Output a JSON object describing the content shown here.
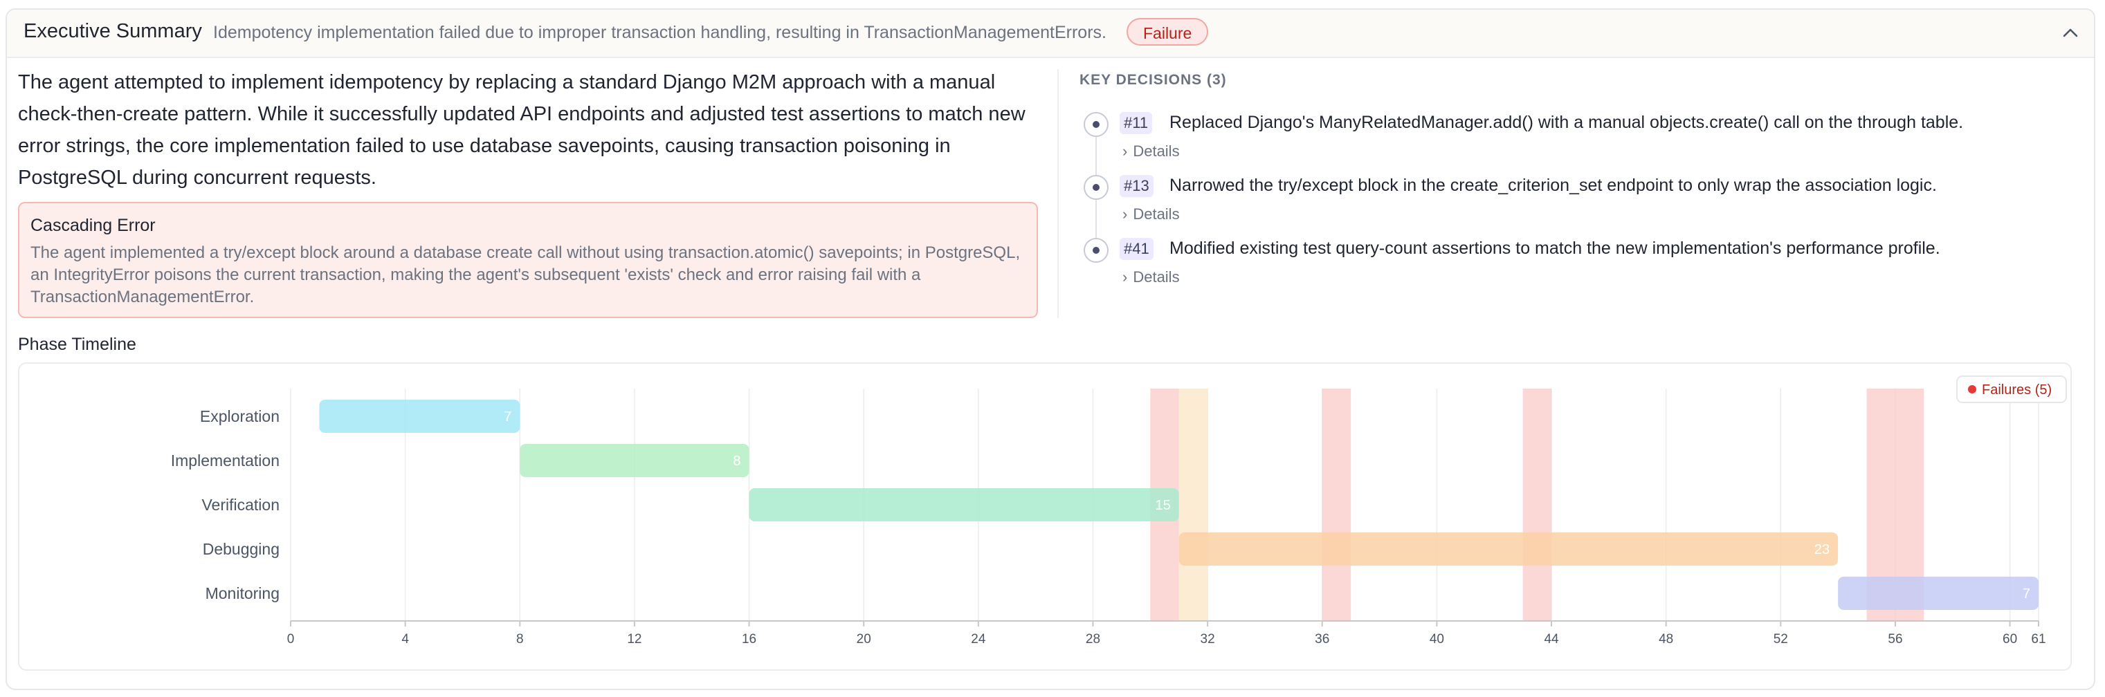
{
  "header": {
    "title": "Executive Summary",
    "description": "Idempotency implementation failed due to improper transaction handling, resulting in TransactionManagementErrors.",
    "badge": "Failure",
    "collapse_icon": "chevron-up-icon"
  },
  "summary": "The agent attempted to implement idempotency by replacing a standard Django M2M approach with a manual check-then-create pattern. While it successfully updated API endpoints and adjusted test assertions to match new error strings, the core implementation failed to use database savepoints, causing transaction poisoning in PostgreSQL during concurrent requests.",
  "cascading_error": {
    "title": "Cascading Error",
    "body": "The agent implemented a try/except block around a database create call without using transaction.atomic() savepoints; in PostgreSQL, an IntegrityError poisons the current transaction, making the agent's subsequent 'exists' check and error raising fail with a TransactionManagementError."
  },
  "key_decisions": {
    "heading": "KEY DECISIONS (3)",
    "details_label": "Details",
    "items": [
      {
        "num": "#11",
        "text": "Replaced Django's ManyRelatedManager.add() with a manual objects.create() call on the through table."
      },
      {
        "num": "#13",
        "text": "Narrowed the try/except block in the create_criterion_set endpoint to only wrap the association logic."
      },
      {
        "num": "#41",
        "text": "Modified existing test query-count assertions to match the new implementation's performance profile."
      }
    ]
  },
  "phase_timeline": {
    "label": "Phase Timeline",
    "legend": "Failures (5)"
  },
  "chart_data": {
    "type": "gantt",
    "x_ticks": [
      0,
      4,
      8,
      12,
      16,
      20,
      24,
      28,
      32,
      36,
      40,
      44,
      48,
      52,
      56,
      60,
      61
    ],
    "xlim": [
      0,
      61
    ],
    "grid": true,
    "legend_position": "top-right",
    "phases": [
      {
        "name": "Exploration",
        "start": 1,
        "end": 8,
        "count": "7",
        "color": "#a5e8f7"
      },
      {
        "name": "Implementation",
        "start": 8,
        "end": 16,
        "count": "8",
        "color": "#b5efc4"
      },
      {
        "name": "Verification",
        "start": 16,
        "end": 31,
        "count": "15",
        "color": "#a8ebcc"
      },
      {
        "name": "Debugging",
        "start": 31,
        "end": 54,
        "count": "23",
        "color": "#fbd1a4"
      },
      {
        "name": "Monitoring",
        "start": 54,
        "end": 61,
        "count": "7",
        "color": "#c3cbf6"
      }
    ],
    "failure_bands": [
      {
        "start": 30,
        "end": 31
      },
      {
        "start": 36,
        "end": 37
      },
      {
        "start": 43,
        "end": 44
      },
      {
        "start": 55,
        "end": 56
      },
      {
        "start": 56,
        "end": 57
      }
    ],
    "highlight_bands": [
      {
        "start": 31,
        "end": 32
      }
    ],
    "colors": {
      "failure": "#f9c8c4",
      "highlight": "#fde9cc",
      "legend_dot": "#e53935",
      "grid": "#ececec",
      "axis": "#c8c8c8"
    }
  }
}
